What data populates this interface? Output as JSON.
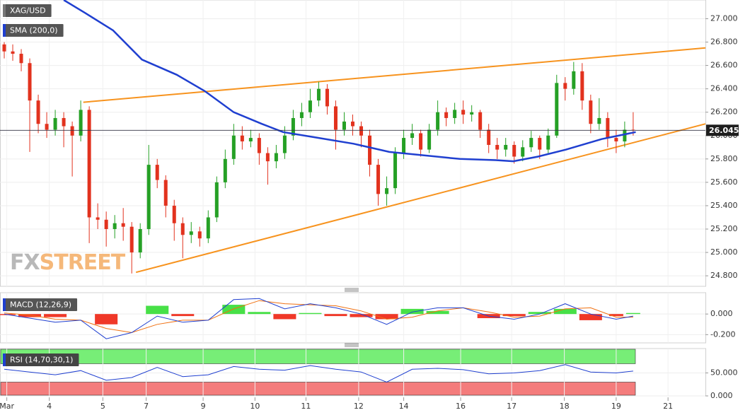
{
  "chart_data": [
    {
      "type": "candlestick",
      "xlim": [
        -0.5,
        82.5
      ],
      "xticks": [
        {
          "value": 0.3,
          "label": "Mar"
        },
        {
          "value": 5.3,
          "label": "4"
        },
        {
          "value": 11.6,
          "label": "5"
        },
        {
          "value": 16.7,
          "label": "7"
        },
        {
          "value": 23.4,
          "label": "9"
        },
        {
          "value": 29.5,
          "label": "10"
        },
        {
          "value": 35.5,
          "label": "11"
        },
        {
          "value": 41.7,
          "label": "12"
        },
        {
          "value": 47.0,
          "label": "14"
        },
        {
          "value": 53.7,
          "label": "16"
        },
        {
          "value": 59.7,
          "label": "17"
        },
        {
          "value": 65.9,
          "label": "18"
        },
        {
          "value": 72.0,
          "label": "19"
        },
        {
          "value": 78.1,
          "label": "21"
        }
      ],
      "ylim": [
        24.71,
        27.16
      ],
      "yticks": [
        {
          "value": 24.8,
          "label": "24.800"
        },
        {
          "value": 25.0,
          "label": "25.000"
        },
        {
          "value": 25.2,
          "label": "25.200"
        },
        {
          "value": 25.4,
          "label": "25.400"
        },
        {
          "value": 25.6,
          "label": "25.600"
        },
        {
          "value": 25.8,
          "label": "25.800"
        },
        {
          "value": 26.0,
          "label": "26.000"
        },
        {
          "value": 26.2,
          "label": "26.200"
        },
        {
          "value": 26.4,
          "label": "26.400"
        },
        {
          "value": 26.6,
          "label": "26.600"
        },
        {
          "value": 26.8,
          "label": "26.800"
        },
        {
          "value": 27.0,
          "label": "27.000"
        }
      ],
      "grid": true,
      "watermark": [
        "FX",
        "STREET"
      ],
      "last_price": 26.045,
      "series": [
        {
          "name": "XAG/USD",
          "color": "#555555",
          "up_color": "#25a025",
          "down_color": "#e2321e",
          "x": [
            0,
            1,
            2,
            3,
            4,
            5,
            6,
            7,
            8,
            9,
            10,
            11,
            12,
            13,
            14,
            15,
            16,
            17,
            18,
            19,
            20,
            21,
            22,
            23,
            24,
            25,
            26,
            27,
            28,
            29,
            30,
            31,
            32,
            33,
            34,
            35,
            36,
            37,
            38,
            39,
            40,
            41,
            42,
            43,
            44,
            45,
            46,
            47,
            48,
            49,
            50,
            51,
            52,
            53,
            54,
            55,
            56,
            57,
            58,
            59,
            60,
            61,
            62,
            63,
            64,
            65,
            66,
            67,
            68,
            69,
            70,
            71,
            72,
            73,
            74
          ],
          "open": [
            26.78,
            26.72,
            26.7,
            26.62,
            26.3,
            26.1,
            26.05,
            26.15,
            26.08,
            26.0,
            26.22,
            25.3,
            25.28,
            25.2,
            25.25,
            25.22,
            25.0,
            25.2,
            25.75,
            25.62,
            25.4,
            25.25,
            25.15,
            25.18,
            25.12,
            25.3,
            25.6,
            25.8,
            26.0,
            25.95,
            25.98,
            25.85,
            25.78,
            25.85,
            26.0,
            26.15,
            26.2,
            26.3,
            26.4,
            26.25,
            26.05,
            26.12,
            26.08,
            26.0,
            25.75,
            25.5,
            25.55,
            25.85,
            25.98,
            26.02,
            25.88,
            26.05,
            26.2,
            26.15,
            26.22,
            26.18,
            26.2,
            26.05,
            25.92,
            25.88,
            25.92,
            25.82,
            25.9,
            25.98,
            25.88,
            26.0,
            26.45,
            26.4,
            26.55,
            26.3,
            26.1,
            26.15,
            25.98,
            25.95,
            26.05
          ],
          "high": [
            26.8,
            26.78,
            26.74,
            26.66,
            26.35,
            26.2,
            26.22,
            26.2,
            26.12,
            26.3,
            26.25,
            25.42,
            25.35,
            25.32,
            25.38,
            25.26,
            25.25,
            25.92,
            25.8,
            25.66,
            25.45,
            25.3,
            25.26,
            25.22,
            25.36,
            25.65,
            25.88,
            26.1,
            26.08,
            26.05,
            26.02,
            25.9,
            25.92,
            26.08,
            26.22,
            26.28,
            26.4,
            26.46,
            26.44,
            26.3,
            26.2,
            26.18,
            26.12,
            26.05,
            25.8,
            25.65,
            25.9,
            26.05,
            26.1,
            26.05,
            26.1,
            26.3,
            26.24,
            26.28,
            26.3,
            26.26,
            26.22,
            26.1,
            25.98,
            25.98,
            25.95,
            25.96,
            26.04,
            26.0,
            26.06,
            26.52,
            26.5,
            26.63,
            26.62,
            26.35,
            26.32,
            26.2,
            26.05,
            26.12,
            26.2
          ],
          "low": [
            26.66,
            26.64,
            26.55,
            25.86,
            26.02,
            25.98,
            26.0,
            25.9,
            25.65,
            25.95,
            25.08,
            25.2,
            25.05,
            25.12,
            25.1,
            24.82,
            24.95,
            25.15,
            25.55,
            25.3,
            25.1,
            24.95,
            25.08,
            25.05,
            25.08,
            25.26,
            25.55,
            25.75,
            25.88,
            25.9,
            25.75,
            25.58,
            25.72,
            25.8,
            25.96,
            26.08,
            26.15,
            26.25,
            26.18,
            25.88,
            26.0,
            26.0,
            25.9,
            25.65,
            25.4,
            25.4,
            25.5,
            25.8,
            25.92,
            25.82,
            25.85,
            26.0,
            26.08,
            26.1,
            26.1,
            26.12,
            25.98,
            25.85,
            25.8,
            25.82,
            25.76,
            25.78,
            25.86,
            25.8,
            25.84,
            25.98,
            26.3,
            26.35,
            26.22,
            26.02,
            26.05,
            25.9,
            25.85,
            25.9,
            26.0
          ],
          "close": [
            26.72,
            26.7,
            26.62,
            26.3,
            26.1,
            26.05,
            26.15,
            26.08,
            26.0,
            26.22,
            25.3,
            25.28,
            25.2,
            25.25,
            25.22,
            25.0,
            25.2,
            25.75,
            25.62,
            25.4,
            25.25,
            25.15,
            25.18,
            25.12,
            25.3,
            25.6,
            25.8,
            26.0,
            25.95,
            25.98,
            25.85,
            25.78,
            25.85,
            26.0,
            26.15,
            26.2,
            26.3,
            26.4,
            26.25,
            26.05,
            26.12,
            26.08,
            26.0,
            25.75,
            25.5,
            25.55,
            25.85,
            25.98,
            26.02,
            25.88,
            26.05,
            26.2,
            26.15,
            26.22,
            26.18,
            26.2,
            26.05,
            25.92,
            25.88,
            25.92,
            25.82,
            25.9,
            25.98,
            25.88,
            26.0,
            26.45,
            26.4,
            26.55,
            26.3,
            26.1,
            26.15,
            25.98,
            25.95,
            26.05,
            26.045
          ]
        },
        {
          "name": "SMA (200,0)",
          "color": "#1f3fd0",
          "x": [
            7,
            9.5,
            12.8,
            16.2,
            20.3,
            23.6,
            27,
            30.3,
            32.8,
            37,
            41.1,
            45.3,
            49.5,
            53.6,
            57.8,
            59.9,
            62.8,
            66.1,
            70.3,
            74.3
          ],
          "values": [
            27.16,
            27.05,
            26.9,
            26.65,
            26.52,
            26.38,
            26.2,
            26.1,
            26.03,
            25.98,
            25.93,
            25.86,
            25.83,
            25.8,
            25.79,
            25.78,
            25.82,
            25.88,
            25.97,
            26.03
          ]
        }
      ],
      "trendlines": [
        {
          "color": "#f7931e",
          "x": [
            9.3,
            82.5
          ],
          "values": [
            26.285,
            26.75
          ]
        },
        {
          "color": "#f7931e",
          "x": [
            15.5,
            82.5
          ],
          "values": [
            24.83,
            26.1
          ]
        }
      ]
    },
    {
      "type": "macd",
      "title": "MACD (12,26,9)",
      "xlim": [
        -0.5,
        82.5
      ],
      "ylim": [
        -0.28,
        0.207
      ],
      "yticks": [
        {
          "value": -0.2,
          "label": "-0.200"
        },
        {
          "value": 0,
          "label": "0.000"
        }
      ],
      "x": [
        0,
        3,
        6,
        9,
        12,
        15,
        18,
        21,
        24,
        27,
        30,
        33,
        36,
        39,
        42,
        45,
        48,
        51,
        54,
        57,
        60,
        63,
        66,
        69,
        72,
        74
      ],
      "macd": {
        "color": "#1f3fd0",
        "values": [
          0.0,
          -0.04,
          -0.08,
          -0.06,
          -0.24,
          -0.18,
          -0.02,
          -0.08,
          -0.06,
          0.14,
          0.15,
          0.05,
          0.1,
          0.06,
          0.0,
          -0.1,
          0.02,
          0.06,
          0.06,
          -0.02,
          -0.05,
          0.0,
          0.1,
          0.0,
          -0.05,
          -0.02
        ]
      },
      "signal": {
        "color": "#f07010",
        "values": [
          0.01,
          -0.01,
          -0.05,
          -0.06,
          -0.14,
          -0.18,
          -0.1,
          -0.06,
          -0.06,
          0.05,
          0.13,
          0.1,
          0.09,
          0.08,
          0.03,
          -0.05,
          -0.03,
          0.03,
          0.06,
          0.02,
          -0.03,
          -0.02,
          0.05,
          0.06,
          -0.03,
          -0.03
        ]
      },
      "histogram": {
        "up_color": "#33dd33",
        "down_color": "#ee2211",
        "values": [
          -0.01,
          -0.03,
          -0.03,
          0.0,
          -0.1,
          0.0,
          0.08,
          -0.02,
          0.0,
          0.09,
          0.02,
          -0.05,
          0.01,
          -0.02,
          -0.03,
          -0.05,
          0.05,
          0.03,
          0.0,
          -0.04,
          -0.02,
          0.02,
          0.05,
          -0.06,
          -0.02,
          0.01
        ]
      }
    },
    {
      "type": "rsi",
      "title": "RSI (14,70,30,1)",
      "xlim": [
        -0.5,
        82.5
      ],
      "ylim": [
        0,
        103
      ],
      "yticks": [
        {
          "value": 0,
          "label": "0.000"
        },
        {
          "value": 50,
          "label": "50.000"
        }
      ],
      "overbought": 70,
      "oversold": 30,
      "overbought_color": "#77ee77",
      "oversold_color": "#f47c7c",
      "color": "#1f3fd0",
      "x": [
        0,
        3,
        6,
        9,
        12,
        15,
        18,
        21,
        24,
        27,
        30,
        33,
        36,
        39,
        42,
        45,
        48,
        51,
        54,
        57,
        60,
        63,
        66,
        69,
        72,
        74
      ],
      "values": [
        58,
        52,
        46,
        55,
        34,
        40,
        62,
        42,
        46,
        64,
        58,
        56,
        66,
        58,
        52,
        30,
        58,
        60,
        57,
        48,
        50,
        55,
        68,
        52,
        50,
        54
      ]
    }
  ]
}
